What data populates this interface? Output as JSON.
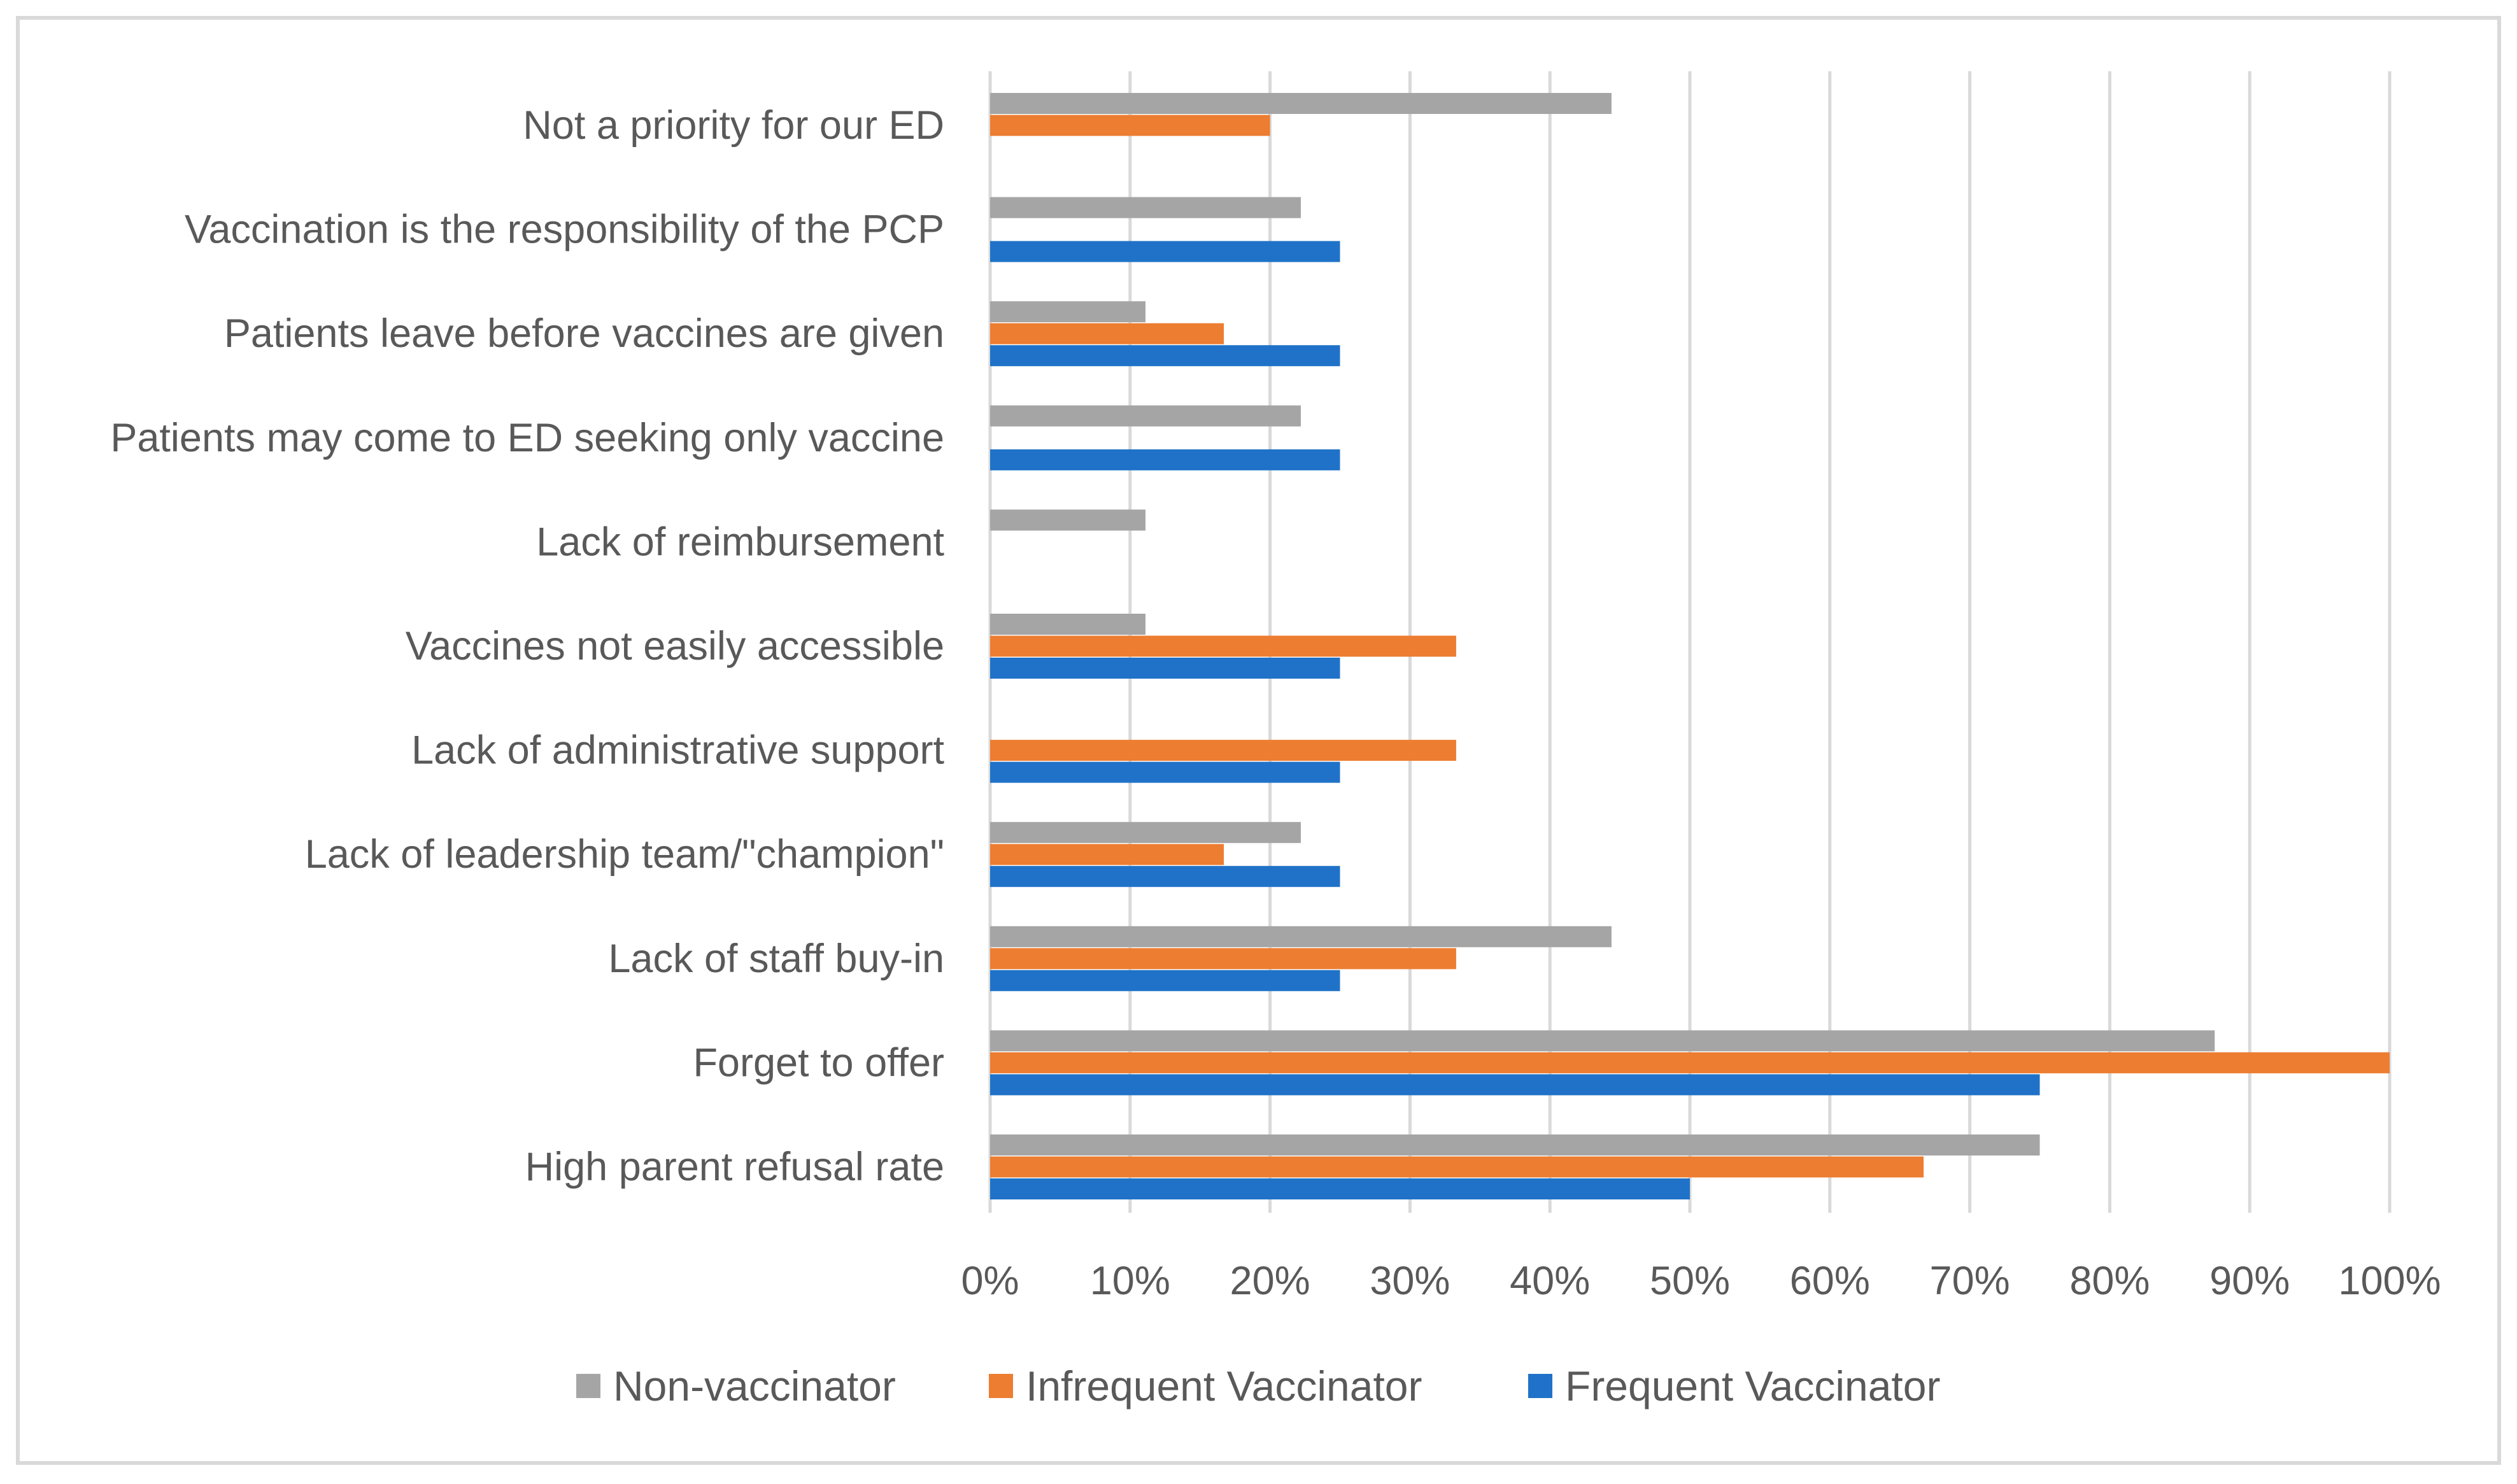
{
  "chart_data": {
    "type": "bar",
    "orientation": "horizontal",
    "title": "",
    "xlabel": "",
    "ylabel": "",
    "xlim": [
      0,
      100
    ],
    "tick_labels": [
      "0%",
      "10%",
      "20%",
      "30%",
      "40%",
      "50%",
      "60%",
      "70%",
      "80%",
      "90%",
      "100%"
    ],
    "grid": true,
    "legend_position": "bottom",
    "categories": [
      "Not a priority for our ED",
      "Vaccination is the responsibility of the PCP",
      "Patients leave before vaccines are given",
      "Patients may come to ED seeking only vaccine",
      "Lack of reimbursement",
      "Vaccines not easily accessible",
      "Lack of administrative support",
      "Lack of leadership team/\"champion\"",
      "Lack of staff buy-in",
      "Forget to offer",
      "High parent refusal rate"
    ],
    "series": [
      {
        "name": "Non-vaccinator",
        "color": "#a5a5a5",
        "values": [
          44.4,
          22.2,
          11.1,
          22.2,
          11.1,
          11.1,
          0,
          22.2,
          44.4,
          87.5,
          75
        ]
      },
      {
        "name": "Infrequent Vaccinator",
        "color": "#ed7d31",
        "values": [
          20,
          0,
          16.7,
          0,
          0,
          33.3,
          33.3,
          16.7,
          33.3,
          100,
          66.7
        ]
      },
      {
        "name": "Frequent Vaccinator",
        "color": "#1f72c8",
        "values": [
          0,
          25,
          25,
          25,
          0,
          25,
          25,
          25,
          25,
          75,
          50
        ]
      }
    ]
  },
  "colors": {
    "gridline": "#d9d9d9",
    "frame": "#d9d9d9",
    "text": "#595959"
  }
}
